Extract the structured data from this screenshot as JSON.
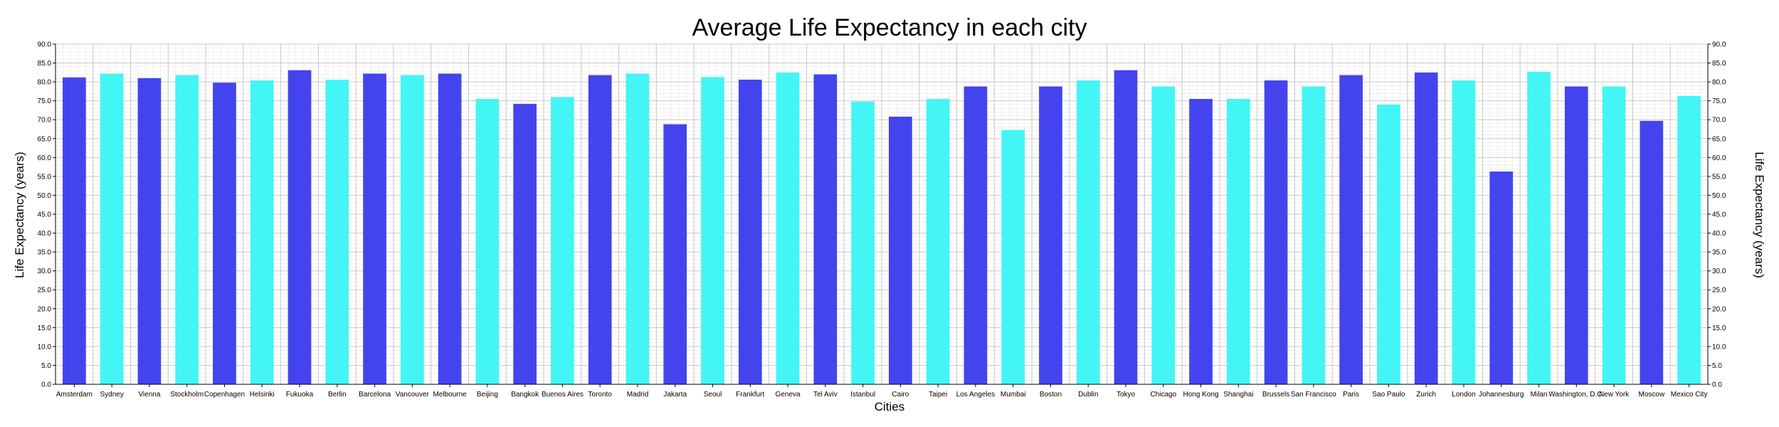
{
  "chart_data": {
    "type": "bar",
    "title": "Average Life Expectancy in each city",
    "xlabel": "Cities",
    "ylabel": "Life Expectancy (years)",
    "ylabel_right": "Life Expectancy (years)",
    "ylim": [
      0,
      90
    ],
    "ytick_step": 5,
    "grid": true,
    "legend": "none",
    "colors": {
      "primary": "#4444ee",
      "secondary": "#44f5f5",
      "grid_major": "#c8c8c8",
      "grid_minor": "#e6e6e6"
    },
    "categories": [
      "Amsterdam",
      "Sydney",
      "Vienna",
      "Stockholm",
      "Copenhagen",
      "Helsinki",
      "Fukuoka",
      "Berlin",
      "Barcelona",
      "Vancouver",
      "Melbourne",
      "Beijing",
      "Bangkok",
      "Buenos Aires",
      "Toronto",
      "Madrid",
      "Jakarta",
      "Seoul",
      "Frankfurt",
      "Geneva",
      "Tel Aviv",
      "Istanbul",
      "Cairo",
      "Taipei",
      "Los Angeles",
      "Mumbai",
      "Boston",
      "Dublin",
      "Tokyo",
      "Chicago",
      "Hong Kong",
      "Shanghai",
      "Brussels",
      "San Francisco",
      "Paris",
      "Sao Paulo",
      "Zurich",
      "London",
      "Johannesburg",
      "Milan",
      "Washington, D.C.",
      "New York",
      "Moscow",
      "Mexico City"
    ],
    "values": [
      81.2,
      82.2,
      81.0,
      81.8,
      79.8,
      80.4,
      83.1,
      80.6,
      82.2,
      81.8,
      82.2,
      75.5,
      74.2,
      76.0,
      81.8,
      82.2,
      68.8,
      81.3,
      80.6,
      82.5,
      82.0,
      74.8,
      70.8,
      75.5,
      78.8,
      67.3,
      78.8,
      80.4,
      83.1,
      78.8,
      75.5,
      75.5,
      80.4,
      78.8,
      81.8,
      74.0,
      82.5,
      80.4,
      56.3,
      82.7,
      78.8,
      78.8,
      69.7,
      76.3
    ]
  }
}
